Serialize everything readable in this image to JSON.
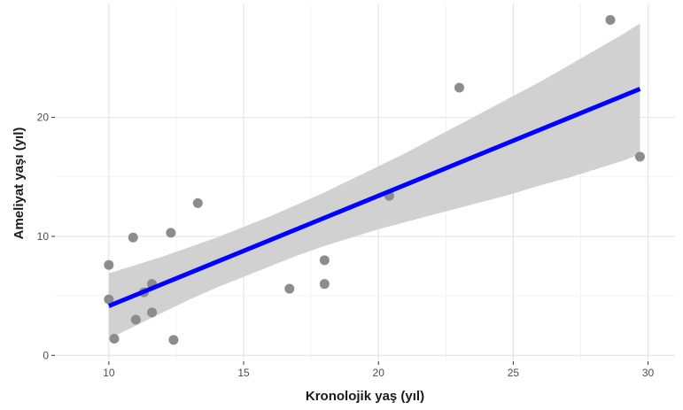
{
  "chart_data": {
    "type": "scatter",
    "title": "",
    "xlabel": "Kronolojik yaş (yıl)",
    "ylabel": "Ameliyat yaşı (yıl)",
    "xlim": [
      8,
      31
    ],
    "ylim": [
      -0.5,
      29.5
    ],
    "x_ticks": [
      10,
      15,
      20,
      25,
      30
    ],
    "x_tick_labels": [
      "10",
      "15",
      "20",
      "25",
      "30"
    ],
    "y_ticks": [
      0,
      10,
      20
    ],
    "y_tick_labels": [
      "0",
      "10",
      "20"
    ],
    "grid": true,
    "legend": "none",
    "points": [
      {
        "x": 10.0,
        "y": 7.6
      },
      {
        "x": 10.0,
        "y": 4.7
      },
      {
        "x": 10.2,
        "y": 1.4
      },
      {
        "x": 10.9,
        "y": 9.9
      },
      {
        "x": 11.0,
        "y": 3.0
      },
      {
        "x": 11.3,
        "y": 5.3
      },
      {
        "x": 11.6,
        "y": 6.0
      },
      {
        "x": 11.6,
        "y": 3.6
      },
      {
        "x": 12.3,
        "y": 10.3
      },
      {
        "x": 12.4,
        "y": 1.3
      },
      {
        "x": 13.3,
        "y": 12.8
      },
      {
        "x": 16.7,
        "y": 5.6
      },
      {
        "x": 18.0,
        "y": 8.0
      },
      {
        "x": 18.0,
        "y": 6.0
      },
      {
        "x": 20.4,
        "y": 13.4
      },
      {
        "x": 23.0,
        "y": 22.5
      },
      {
        "x": 28.6,
        "y": 28.2
      },
      {
        "x": 29.7,
        "y": 16.7
      }
    ],
    "fit_line": {
      "x": [
        10.0,
        29.7
      ],
      "y": [
        4.15,
        22.4
      ]
    },
    "confidence_band": {
      "x": [
        10.0,
        11.0,
        12.0,
        13.0,
        14.0,
        15.0,
        16.0,
        17.0,
        18.0,
        19.0,
        20.0,
        21.0,
        22.0,
        23.0,
        24.0,
        25.0,
        26.0,
        27.0,
        28.0,
        29.0,
        29.7
      ],
      "upper": [
        6.9,
        7.6,
        8.3,
        9.1,
        9.9,
        10.8,
        11.7,
        12.7,
        13.7,
        14.8,
        15.9,
        17.0,
        18.2,
        19.4,
        20.6,
        21.8,
        23.0,
        24.3,
        25.6,
        26.9,
        27.9
      ],
      "lower": [
        1.4,
        2.5,
        3.6,
        4.7,
        5.7,
        6.6,
        7.5,
        8.4,
        9.2,
        9.9,
        10.6,
        11.2,
        11.8,
        12.4,
        13.0,
        13.6,
        14.3,
        14.9,
        15.6,
        16.3,
        16.9
      ]
    },
    "colors": {
      "points": "#8c8c8c",
      "line": "#0000ff",
      "band": "#cccccc",
      "panel": "#ffffff",
      "grid_major": "#e3e3e3",
      "grid_minor": "#f0f0f0"
    }
  }
}
